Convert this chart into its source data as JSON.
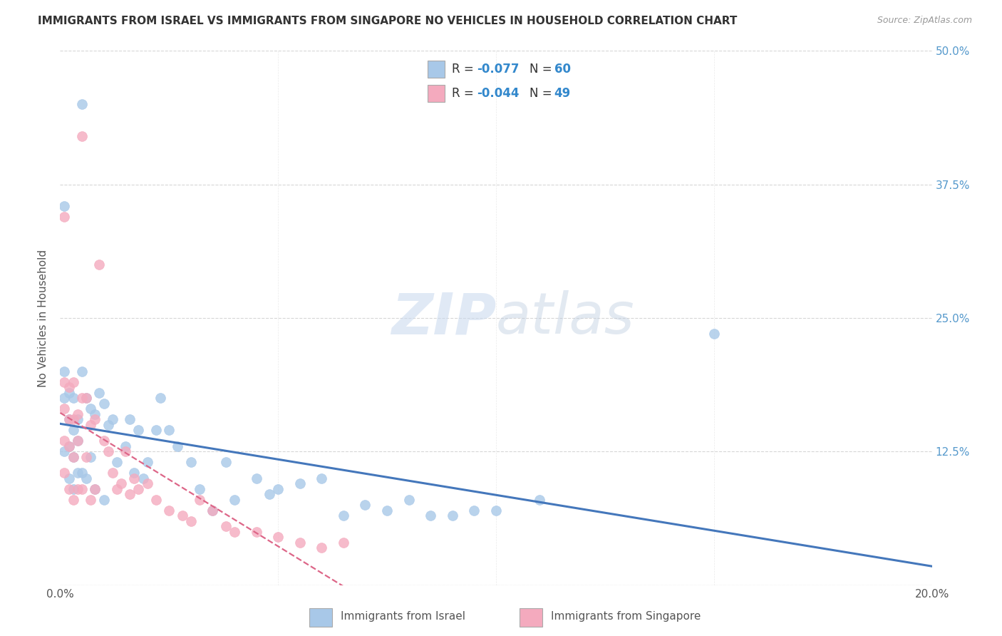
{
  "title": "IMMIGRANTS FROM ISRAEL VS IMMIGRANTS FROM SINGAPORE NO VEHICLES IN HOUSEHOLD CORRELATION CHART",
  "source": "Source: ZipAtlas.com",
  "ylabel": "No Vehicles in Household",
  "watermark": "ZIPatlas",
  "israel_color": "#a8c8e8",
  "singapore_color": "#f4aabe",
  "israel_line_color": "#4477bb",
  "singapore_line_color": "#dd6688",
  "xlim": [
    0.0,
    0.2
  ],
  "ylim": [
    0.0,
    0.5
  ],
  "xticks": [
    0.0,
    0.05,
    0.1,
    0.15,
    0.2
  ],
  "xtick_labels": [
    "0.0%",
    "",
    "",
    "",
    "20.0%"
  ],
  "yticks": [
    0.0,
    0.125,
    0.25,
    0.375,
    0.5
  ],
  "ytick_labels_right": [
    "",
    "12.5%",
    "25.0%",
    "37.5%",
    "50.0%"
  ],
  "israel_R": -0.077,
  "israel_N": 60,
  "singapore_R": -0.044,
  "singapore_N": 49,
  "israel_x": [
    0.001,
    0.001,
    0.001,
    0.002,
    0.002,
    0.002,
    0.002,
    0.003,
    0.003,
    0.003,
    0.003,
    0.004,
    0.004,
    0.004,
    0.005,
    0.005,
    0.005,
    0.006,
    0.006,
    0.007,
    0.007,
    0.008,
    0.008,
    0.009,
    0.01,
    0.01,
    0.011,
    0.012,
    0.013,
    0.015,
    0.016,
    0.017,
    0.018,
    0.019,
    0.02,
    0.022,
    0.023,
    0.025,
    0.027,
    0.03,
    0.032,
    0.035,
    0.038,
    0.04,
    0.045,
    0.048,
    0.05,
    0.055,
    0.06,
    0.065,
    0.07,
    0.075,
    0.08,
    0.085,
    0.09,
    0.095,
    0.1,
    0.11,
    0.15,
    0.001
  ],
  "israel_y": [
    0.2,
    0.175,
    0.125,
    0.18,
    0.155,
    0.13,
    0.1,
    0.175,
    0.145,
    0.12,
    0.09,
    0.155,
    0.135,
    0.105,
    0.45,
    0.2,
    0.105,
    0.175,
    0.1,
    0.165,
    0.12,
    0.16,
    0.09,
    0.18,
    0.17,
    0.08,
    0.15,
    0.155,
    0.115,
    0.13,
    0.155,
    0.105,
    0.145,
    0.1,
    0.115,
    0.145,
    0.175,
    0.145,
    0.13,
    0.115,
    0.09,
    0.07,
    0.115,
    0.08,
    0.1,
    0.085,
    0.09,
    0.095,
    0.1,
    0.065,
    0.075,
    0.07,
    0.08,
    0.065,
    0.065,
    0.07,
    0.07,
    0.08,
    0.235,
    0.355
  ],
  "singapore_x": [
    0.001,
    0.001,
    0.001,
    0.001,
    0.002,
    0.002,
    0.002,
    0.002,
    0.003,
    0.003,
    0.003,
    0.003,
    0.004,
    0.004,
    0.004,
    0.005,
    0.005,
    0.005,
    0.006,
    0.006,
    0.007,
    0.007,
    0.008,
    0.008,
    0.009,
    0.01,
    0.011,
    0.012,
    0.013,
    0.014,
    0.015,
    0.016,
    0.017,
    0.018,
    0.02,
    0.022,
    0.025,
    0.028,
    0.03,
    0.032,
    0.035,
    0.038,
    0.04,
    0.045,
    0.05,
    0.055,
    0.06,
    0.065,
    0.001
  ],
  "singapore_y": [
    0.19,
    0.165,
    0.135,
    0.105,
    0.185,
    0.155,
    0.13,
    0.09,
    0.19,
    0.155,
    0.12,
    0.08,
    0.16,
    0.135,
    0.09,
    0.42,
    0.175,
    0.09,
    0.175,
    0.12,
    0.15,
    0.08,
    0.155,
    0.09,
    0.3,
    0.135,
    0.125,
    0.105,
    0.09,
    0.095,
    0.125,
    0.085,
    0.1,
    0.09,
    0.095,
    0.08,
    0.07,
    0.065,
    0.06,
    0.08,
    0.07,
    0.055,
    0.05,
    0.05,
    0.045,
    0.04,
    0.035,
    0.04,
    0.345
  ],
  "background_color": "#ffffff",
  "grid_color": "#cccccc",
  "title_color": "#333333",
  "right_axis_color": "#5599cc"
}
